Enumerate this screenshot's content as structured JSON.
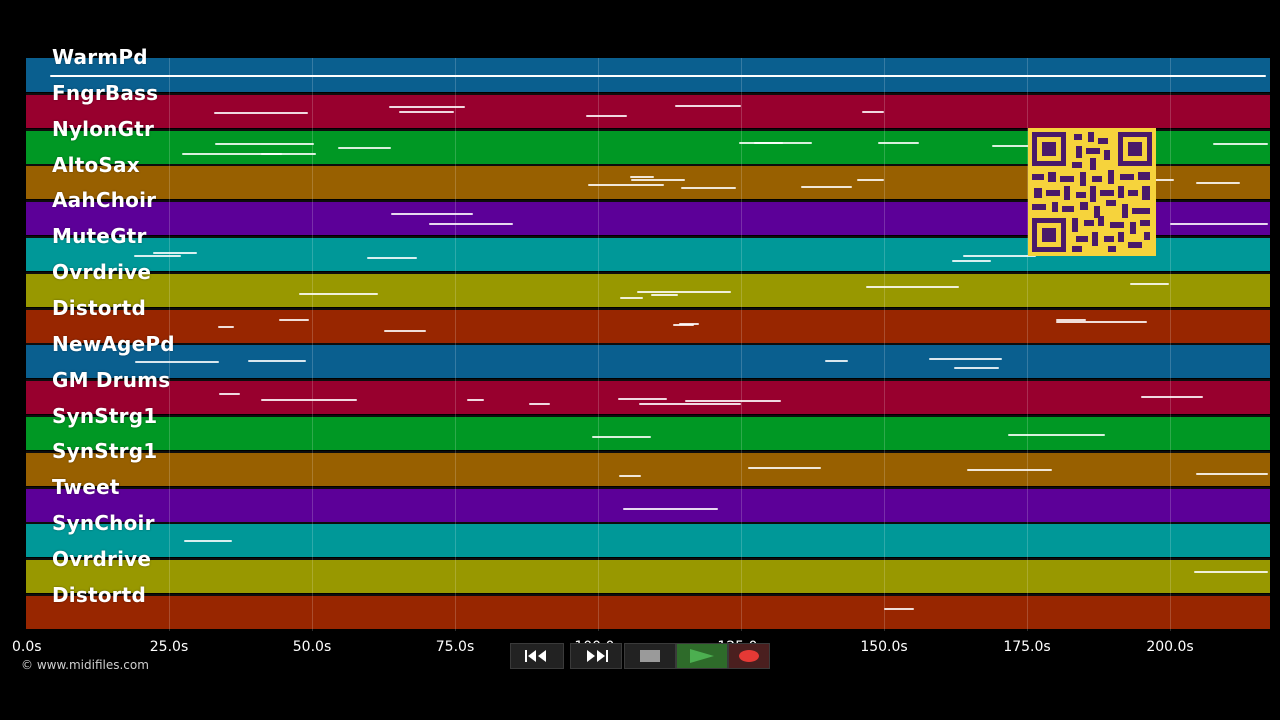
{
  "tracks": [
    {
      "name": "WarmPd",
      "color": "#0a5f8f"
    },
    {
      "name": "FngrBass",
      "color": "#98002e"
    },
    {
      "name": "NylonGtr",
      "color": "#009824"
    },
    {
      "name": "AltoSax",
      "color": "#986000"
    },
    {
      "name": "AahChoir",
      "color": "#5c0098"
    },
    {
      "name": "MuteGtr",
      "color": "#009898"
    },
    {
      "name": "Ovrdrive",
      "color": "#989800"
    },
    {
      "name": "Distortd",
      "color": "#982600"
    },
    {
      "name": "NewAgePd",
      "color": "#0a5f8f"
    },
    {
      "name": "GM Drums",
      "color": "#98002e"
    },
    {
      "name": "SynStrg1",
      "color": "#009824"
    },
    {
      "name": "SynStrg1",
      "color": "#986000"
    },
    {
      "name": "Tweet",
      "color": "#5c0098"
    },
    {
      "name": "SynChoir",
      "color": "#009898"
    },
    {
      "name": "Ovrdrive",
      "color": "#989800"
    },
    {
      "name": "Distortd",
      "color": "#982600"
    }
  ],
  "timeline": {
    "ticks": [
      "0.0s",
      "25.0s",
      "50.0s",
      "75.0s",
      "100.0s",
      "125.0s",
      "150.0s",
      "175.0s",
      "200.0s"
    ],
    "tick_seconds": [
      0,
      25,
      50,
      75,
      100,
      125,
      150,
      175,
      200
    ],
    "max_seconds": 218
  },
  "copyright": "© www.midifiles.com",
  "controls": {
    "rewind_icon": "rewind-icon",
    "forward_icon": "fast-forward-icon",
    "stop_icon": "stop-icon",
    "play_icon": "play-icon",
    "record_icon": "record-icon",
    "play_color": "#4caf50",
    "record_color": "#e53935"
  },
  "qr_icon": "qr-code-icon"
}
